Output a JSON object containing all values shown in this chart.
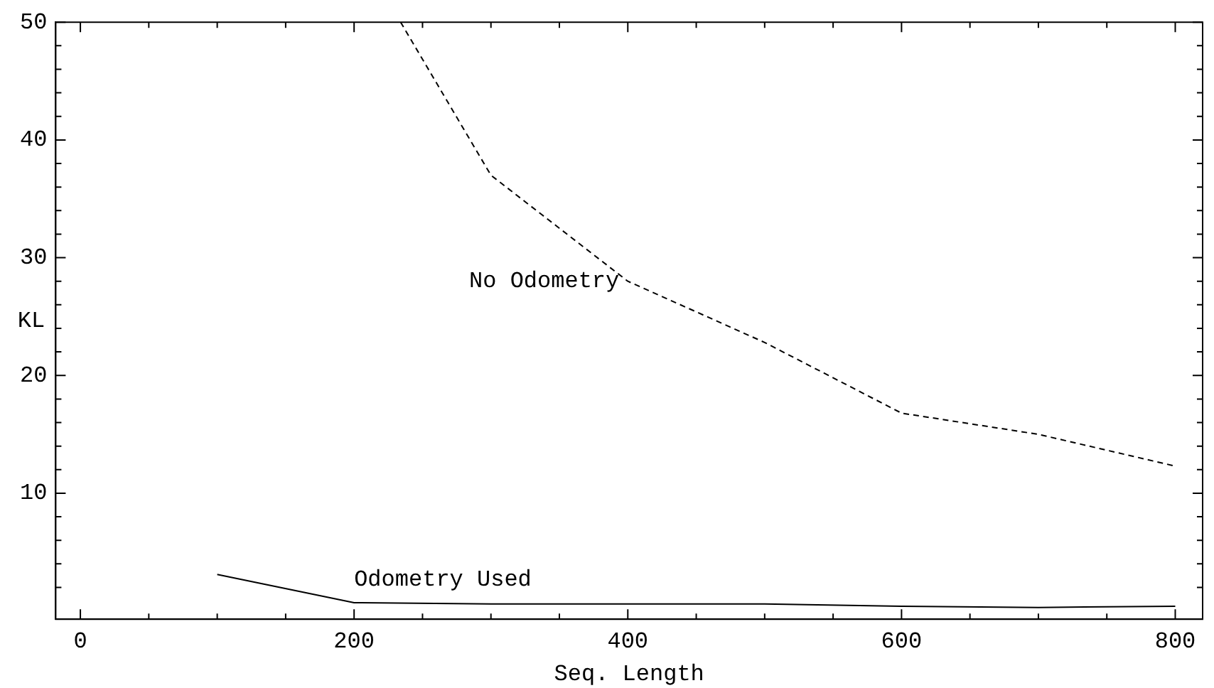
{
  "chart_data": {
    "type": "line",
    "xlabel": "Seq. Length",
    "ylabel": "KL",
    "xlim": [
      -18,
      820
    ],
    "ylim": [
      -0.7,
      50
    ],
    "xticks": [
      0,
      {
        "value": 50,
        "label": null
      },
      {
        "value": 100,
        "label": null
      },
      {
        "value": 150,
        "label": null
      },
      200,
      {
        "value": 250,
        "label": null
      },
      {
        "value": 300,
        "label": null
      },
      {
        "value": 350,
        "label": null
      },
      400,
      {
        "value": 450,
        "label": null
      },
      {
        "value": 500,
        "label": null
      },
      {
        "value": 550,
        "label": null
      },
      600,
      {
        "value": 650,
        "label": null
      },
      {
        "value": 700,
        "label": null
      },
      {
        "value": 750,
        "label": null
      },
      800
    ],
    "yticks": [
      {
        "value": 2,
        "label": null
      },
      {
        "value": 4,
        "label": null
      },
      {
        "value": 6,
        "label": null
      },
      {
        "value": 8,
        "label": null
      },
      10,
      {
        "value": 12,
        "label": null
      },
      {
        "value": 14,
        "label": null
      },
      {
        "value": 16,
        "label": null
      },
      {
        "value": 18,
        "label": null
      },
      20,
      {
        "value": 22,
        "label": null
      },
      {
        "value": 24,
        "label": null
      },
      {
        "value": 26,
        "label": null
      },
      {
        "value": 28,
        "label": null
      },
      30,
      {
        "value": 32,
        "label": null
      },
      {
        "value": 34,
        "label": null
      },
      {
        "value": 36,
        "label": null
      },
      {
        "value": 38,
        "label": null
      },
      40,
      {
        "value": 42,
        "label": null
      },
      {
        "value": 44,
        "label": null
      },
      {
        "value": 46,
        "label": null
      },
      {
        "value": 48,
        "label": null
      },
      50
    ],
    "grid": false,
    "legend": false,
    "marker": "none",
    "series": [
      {
        "name": "No Odometry",
        "color": "#000000",
        "line_style": "dashed",
        "x": [
          234,
          300,
          400,
          500,
          600,
          700,
          800
        ],
        "values": [
          50,
          37,
          28,
          22.8,
          16.8,
          15,
          12.3
        ]
      },
      {
        "name": "Odometry Used",
        "color": "#000000",
        "line_style": "solid",
        "x": [
          100,
          200,
          300,
          400,
          500,
          600,
          700,
          800
        ],
        "values": [
          3.1,
          0.7,
          0.6,
          0.6,
          0.6,
          0.4,
          0.3,
          0.4
        ]
      }
    ]
  }
}
